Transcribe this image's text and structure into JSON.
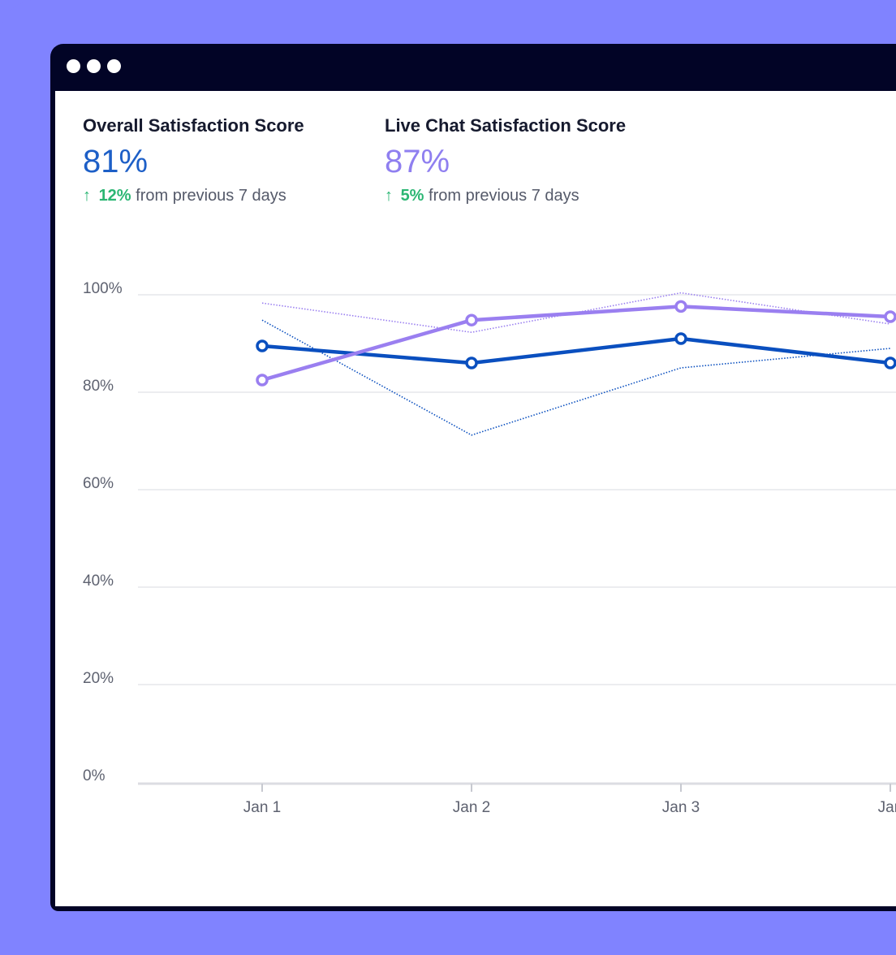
{
  "colors": {
    "background": "#8083ff",
    "window_frame": "#020426",
    "overall": "#0a4fbf",
    "live_chat": "#9a7ff0",
    "positive": "#2bb673"
  },
  "metrics": [
    {
      "title": "Overall Satisfaction Score",
      "value": "81%",
      "change_icon": "arrow-up-icon",
      "change": "12%",
      "change_suffix": "from previous 7 days"
    },
    {
      "title": "Live Chat Satisfaction Score",
      "value": "87%",
      "change_icon": "arrow-up-icon",
      "change": "5%",
      "change_suffix": "from previous 7 days"
    }
  ],
  "chart_data": {
    "type": "line",
    "categories": [
      "Jan 1",
      "Jan 2",
      "Jan 3",
      "Jan"
    ],
    "y_ticks": [
      "0%",
      "20%",
      "40%",
      "60%",
      "80%",
      "100%"
    ],
    "ylim": [
      0,
      100
    ],
    "grid": true,
    "series": [
      {
        "key": "overall",
        "style": "solid",
        "values": [
          89.5,
          86,
          91,
          86
        ]
      },
      {
        "key": "live_chat",
        "style": "solid",
        "values": [
          82.5,
          94.8,
          97.6,
          95.5
        ]
      },
      {
        "key": "overall_previous",
        "style": "dotted",
        "values": [
          94.8,
          71.2,
          85,
          89
        ]
      },
      {
        "key": "live_chat_previous",
        "style": "dotted",
        "values": [
          98.3,
          92.3,
          100.4,
          94
        ]
      }
    ]
  }
}
